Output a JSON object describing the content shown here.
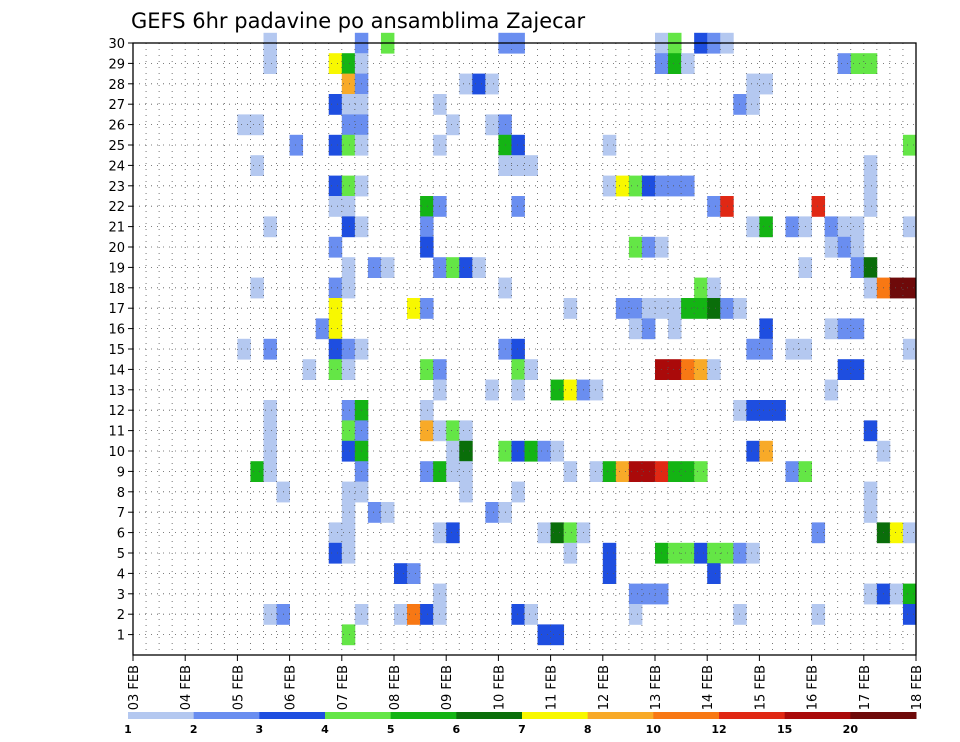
{
  "chart_data": {
    "type": "heatmap",
    "title": "GEFS 6hr padavine po ansamblima Zajecar",
    "xlabel": "",
    "ylabel": "",
    "x_ticks": [
      "03 FEB",
      "04 FEB",
      "05 FEB",
      "06 FEB",
      "07 FEB",
      "08 FEB",
      "09 FEB",
      "10 FEB",
      "11 FEB",
      "12 FEB",
      "13 FEB",
      "14 FEB",
      "15 FEB",
      "16 FEB",
      "17 FEB",
      "18 FEB"
    ],
    "xlim": [
      0,
      60
    ],
    "y_ticks": [
      1,
      2,
      3,
      4,
      5,
      6,
      7,
      8,
      9,
      10,
      11,
      12,
      13,
      14,
      15,
      16,
      17,
      18,
      19,
      20,
      21,
      22,
      23,
      24,
      25,
      26,
      27,
      28,
      29,
      30
    ],
    "ylim": [
      0,
      30
    ],
    "x_unit": "6-hour step from 03 FEB 00Z",
    "y_unit": "ensemble member",
    "colorbar": {
      "labels": [
        "1",
        "2",
        "3",
        "4",
        "5",
        "6",
        "7",
        "8",
        "10",
        "12",
        "15",
        "20"
      ],
      "colors": [
        "#b4c8f0",
        "#6a8ef0",
        "#1e4ee0",
        "#64e646",
        "#14b414",
        "#0a6e0a",
        "#f8f800",
        "#f8aa28",
        "#f87814",
        "#e02814",
        "#aa0a0a",
        "#6e0a0a"
      ]
    },
    "cells": [
      [
        10,
        30,
        1
      ],
      [
        17,
        30,
        2
      ],
      [
        19,
        30,
        4
      ],
      [
        28,
        30,
        2
      ],
      [
        29,
        30,
        2
      ],
      [
        40,
        30,
        1
      ],
      [
        41,
        30,
        4
      ],
      [
        43,
        30,
        3
      ],
      [
        44,
        30,
        2
      ],
      [
        45,
        30,
        1
      ],
      [
        10,
        29,
        1
      ],
      [
        15,
        29,
        7
      ],
      [
        16,
        29,
        5
      ],
      [
        17,
        29,
        1
      ],
      [
        40,
        29,
        2
      ],
      [
        41,
        29,
        5
      ],
      [
        42,
        29,
        1
      ],
      [
        54,
        29,
        2
      ],
      [
        55,
        29,
        4
      ],
      [
        56,
        29,
        4
      ],
      [
        16,
        28,
        8
      ],
      [
        17,
        28,
        2
      ],
      [
        25,
        28,
        1
      ],
      [
        26,
        28,
        3
      ],
      [
        27,
        28,
        1
      ],
      [
        47,
        28,
        1
      ],
      [
        48,
        28,
        1
      ],
      [
        15,
        27,
        3
      ],
      [
        16,
        27,
        1
      ],
      [
        17,
        27,
        1
      ],
      [
        23,
        27,
        1
      ],
      [
        46,
        27,
        2
      ],
      [
        47,
        27,
        1
      ],
      [
        8,
        26,
        1
      ],
      [
        9,
        26,
        1
      ],
      [
        16,
        26,
        2
      ],
      [
        17,
        26,
        2
      ],
      [
        24,
        26,
        1
      ],
      [
        27,
        26,
        1
      ],
      [
        28,
        26,
        2
      ],
      [
        12,
        25,
        2
      ],
      [
        15,
        25,
        3
      ],
      [
        16,
        25,
        4
      ],
      [
        17,
        25,
        1
      ],
      [
        23,
        25,
        1
      ],
      [
        28,
        25,
        5
      ],
      [
        29,
        25,
        3
      ],
      [
        36,
        25,
        1
      ],
      [
        59,
        25,
        4
      ],
      [
        9,
        24,
        1
      ],
      [
        28,
        24,
        1
      ],
      [
        29,
        24,
        1
      ],
      [
        30,
        24,
        1
      ],
      [
        56,
        24,
        1
      ],
      [
        15,
        23,
        3
      ],
      [
        16,
        23,
        4
      ],
      [
        17,
        23,
        1
      ],
      [
        36,
        23,
        1
      ],
      [
        37,
        23,
        7
      ],
      [
        38,
        23,
        4
      ],
      [
        39,
        23,
        3
      ],
      [
        40,
        23,
        2
      ],
      [
        41,
        23,
        2
      ],
      [
        42,
        23,
        2
      ],
      [
        56,
        23,
        1
      ],
      [
        15,
        22,
        1
      ],
      [
        16,
        22,
        1
      ],
      [
        22,
        22,
        5
      ],
      [
        23,
        22,
        2
      ],
      [
        29,
        22,
        2
      ],
      [
        44,
        22,
        2
      ],
      [
        45,
        22,
        13
      ],
      [
        52,
        22,
        13
      ],
      [
        56,
        22,
        1
      ],
      [
        10,
        21,
        1
      ],
      [
        16,
        21,
        3
      ],
      [
        17,
        21,
        1
      ],
      [
        22,
        21,
        2
      ],
      [
        47,
        21,
        1
      ],
      [
        48,
        21,
        5
      ],
      [
        50,
        21,
        2
      ],
      [
        51,
        21,
        1
      ],
      [
        53,
        21,
        2
      ],
      [
        54,
        21,
        1
      ],
      [
        55,
        21,
        1
      ],
      [
        59,
        21,
        1
      ],
      [
        15,
        20,
        2
      ],
      [
        22,
        20,
        3
      ],
      [
        38,
        20,
        4
      ],
      [
        39,
        20,
        2
      ],
      [
        40,
        20,
        1
      ],
      [
        53,
        20,
        1
      ],
      [
        54,
        20,
        2
      ],
      [
        55,
        20,
        1
      ],
      [
        16,
        19,
        1
      ],
      [
        18,
        19,
        2
      ],
      [
        19,
        19,
        1
      ],
      [
        23,
        19,
        2
      ],
      [
        24,
        19,
        4
      ],
      [
        25,
        19,
        3
      ],
      [
        26,
        19,
        1
      ],
      [
        51,
        19,
        1
      ],
      [
        55,
        19,
        2
      ],
      [
        56,
        19,
        6
      ],
      [
        9,
        18,
        1
      ],
      [
        15,
        18,
        2
      ],
      [
        16,
        18,
        1
      ],
      [
        28,
        18,
        1
      ],
      [
        43,
        18,
        4
      ],
      [
        44,
        18,
        1
      ],
      [
        56,
        18,
        1
      ],
      [
        57,
        18,
        10
      ],
      [
        58,
        18,
        20
      ],
      [
        59,
        18,
        20
      ],
      [
        15,
        17,
        7
      ],
      [
        21,
        17,
        7
      ],
      [
        22,
        17,
        2
      ],
      [
        33,
        17,
        1
      ],
      [
        37,
        17,
        2
      ],
      [
        38,
        17,
        2
      ],
      [
        39,
        17,
        1
      ],
      [
        40,
        17,
        1
      ],
      [
        41,
        17,
        1
      ],
      [
        42,
        17,
        5
      ],
      [
        43,
        17,
        5
      ],
      [
        44,
        17,
        6
      ],
      [
        45,
        17,
        2
      ],
      [
        46,
        17,
        1
      ],
      [
        14,
        16,
        2
      ],
      [
        15,
        16,
        7
      ],
      [
        38,
        16,
        1
      ],
      [
        39,
        16,
        2
      ],
      [
        41,
        16,
        1
      ],
      [
        48,
        16,
        3
      ],
      [
        53,
        16,
        1
      ],
      [
        54,
        16,
        2
      ],
      [
        55,
        16,
        2
      ],
      [
        8,
        15,
        1
      ],
      [
        10,
        15,
        2
      ],
      [
        15,
        15,
        3
      ],
      [
        16,
        15,
        2
      ],
      [
        17,
        15,
        1
      ],
      [
        28,
        15,
        2
      ],
      [
        29,
        15,
        3
      ],
      [
        47,
        15,
        2
      ],
      [
        48,
        15,
        2
      ],
      [
        50,
        15,
        1
      ],
      [
        51,
        15,
        1
      ],
      [
        59,
        15,
        1
      ],
      [
        13,
        14,
        1
      ],
      [
        15,
        14,
        4
      ],
      [
        16,
        14,
        1
      ],
      [
        22,
        14,
        4
      ],
      [
        23,
        14,
        2
      ],
      [
        29,
        14,
        4
      ],
      [
        30,
        14,
        1
      ],
      [
        40,
        14,
        15
      ],
      [
        41,
        14,
        15
      ],
      [
        42,
        14,
        10
      ],
      [
        43,
        14,
        8
      ],
      [
        44,
        14,
        1
      ],
      [
        54,
        14,
        3
      ],
      [
        55,
        14,
        3
      ],
      [
        23,
        13,
        1
      ],
      [
        27,
        13,
        1
      ],
      [
        29,
        13,
        1
      ],
      [
        32,
        13,
        5
      ],
      [
        33,
        13,
        7
      ],
      [
        34,
        13,
        2
      ],
      [
        35,
        13,
        1
      ],
      [
        53,
        13,
        1
      ],
      [
        10,
        12,
        1
      ],
      [
        16,
        12,
        2
      ],
      [
        17,
        12,
        5
      ],
      [
        22,
        12,
        1
      ],
      [
        46,
        12,
        1
      ],
      [
        47,
        12,
        3
      ],
      [
        48,
        12,
        3
      ],
      [
        49,
        12,
        3
      ],
      [
        10,
        11,
        1
      ],
      [
        16,
        11,
        4
      ],
      [
        17,
        11,
        2
      ],
      [
        22,
        11,
        8
      ],
      [
        23,
        11,
        1
      ],
      [
        24,
        11,
        4
      ],
      [
        25,
        11,
        1
      ],
      [
        56,
        11,
        3
      ],
      [
        10,
        10,
        1
      ],
      [
        16,
        10,
        3
      ],
      [
        17,
        10,
        5
      ],
      [
        24,
        10,
        1
      ],
      [
        25,
        10,
        6
      ],
      [
        28,
        10,
        4
      ],
      [
        29,
        10,
        3
      ],
      [
        30,
        10,
        5
      ],
      [
        31,
        10,
        2
      ],
      [
        32,
        10,
        1
      ],
      [
        47,
        10,
        3
      ],
      [
        48,
        10,
        8
      ],
      [
        57,
        10,
        1
      ],
      [
        9,
        9,
        5
      ],
      [
        10,
        9,
        1
      ],
      [
        17,
        9,
        2
      ],
      [
        22,
        9,
        2
      ],
      [
        23,
        9,
        5
      ],
      [
        24,
        9,
        1
      ],
      [
        25,
        9,
        1
      ],
      [
        33,
        9,
        1
      ],
      [
        35,
        9,
        1
      ],
      [
        36,
        9,
        5
      ],
      [
        37,
        9,
        8
      ],
      [
        38,
        9,
        15
      ],
      [
        39,
        9,
        15
      ],
      [
        40,
        9,
        12
      ],
      [
        41,
        9,
        5
      ],
      [
        42,
        9,
        5
      ],
      [
        43,
        9,
        4
      ],
      [
        50,
        9,
        2
      ],
      [
        51,
        9,
        4
      ],
      [
        11,
        8,
        1
      ],
      [
        16,
        8,
        1
      ],
      [
        17,
        8,
        1
      ],
      [
        25,
        8,
        1
      ],
      [
        29,
        8,
        1
      ],
      [
        56,
        8,
        1
      ],
      [
        16,
        7,
        1
      ],
      [
        18,
        7,
        2
      ],
      [
        19,
        7,
        1
      ],
      [
        27,
        7,
        2
      ],
      [
        28,
        7,
        1
      ],
      [
        56,
        7,
        1
      ],
      [
        15,
        6,
        1
      ],
      [
        16,
        6,
        1
      ],
      [
        23,
        6,
        1
      ],
      [
        24,
        6,
        3
      ],
      [
        31,
        6,
        1
      ],
      [
        32,
        6,
        6
      ],
      [
        33,
        6,
        4
      ],
      [
        34,
        6,
        1
      ],
      [
        52,
        6,
        2
      ],
      [
        57,
        6,
        6
      ],
      [
        58,
        6,
        7
      ],
      [
        59,
        6,
        1
      ],
      [
        15,
        5,
        3
      ],
      [
        16,
        5,
        1
      ],
      [
        33,
        5,
        1
      ],
      [
        36,
        5,
        3
      ],
      [
        40,
        5,
        5
      ],
      [
        41,
        5,
        4
      ],
      [
        42,
        5,
        4
      ],
      [
        43,
        5,
        3
      ],
      [
        44,
        5,
        4
      ],
      [
        45,
        5,
        4
      ],
      [
        46,
        5,
        2
      ],
      [
        47,
        5,
        1
      ],
      [
        20,
        4,
        3
      ],
      [
        21,
        4,
        2
      ],
      [
        36,
        4,
        3
      ],
      [
        44,
        4,
        3
      ],
      [
        23,
        3,
        1
      ],
      [
        38,
        3,
        2
      ],
      [
        39,
        3,
        2
      ],
      [
        40,
        3,
        2
      ],
      [
        56,
        3,
        1
      ],
      [
        57,
        3,
        3
      ],
      [
        58,
        3,
        1
      ],
      [
        59,
        3,
        5
      ],
      [
        10,
        2,
        1
      ],
      [
        11,
        2,
        2
      ],
      [
        17,
        2,
        1
      ],
      [
        20,
        2,
        1
      ],
      [
        21,
        2,
        10
      ],
      [
        22,
        2,
        3
      ],
      [
        23,
        2,
        1
      ],
      [
        29,
        2,
        3
      ],
      [
        30,
        2,
        1
      ],
      [
        38,
        2,
        1
      ],
      [
        46,
        2,
        1
      ],
      [
        52,
        2,
        1
      ],
      [
        59,
        2,
        3
      ],
      [
        16,
        1,
        4
      ],
      [
        31,
        1,
        3
      ],
      [
        32,
        1,
        3
      ]
    ]
  }
}
